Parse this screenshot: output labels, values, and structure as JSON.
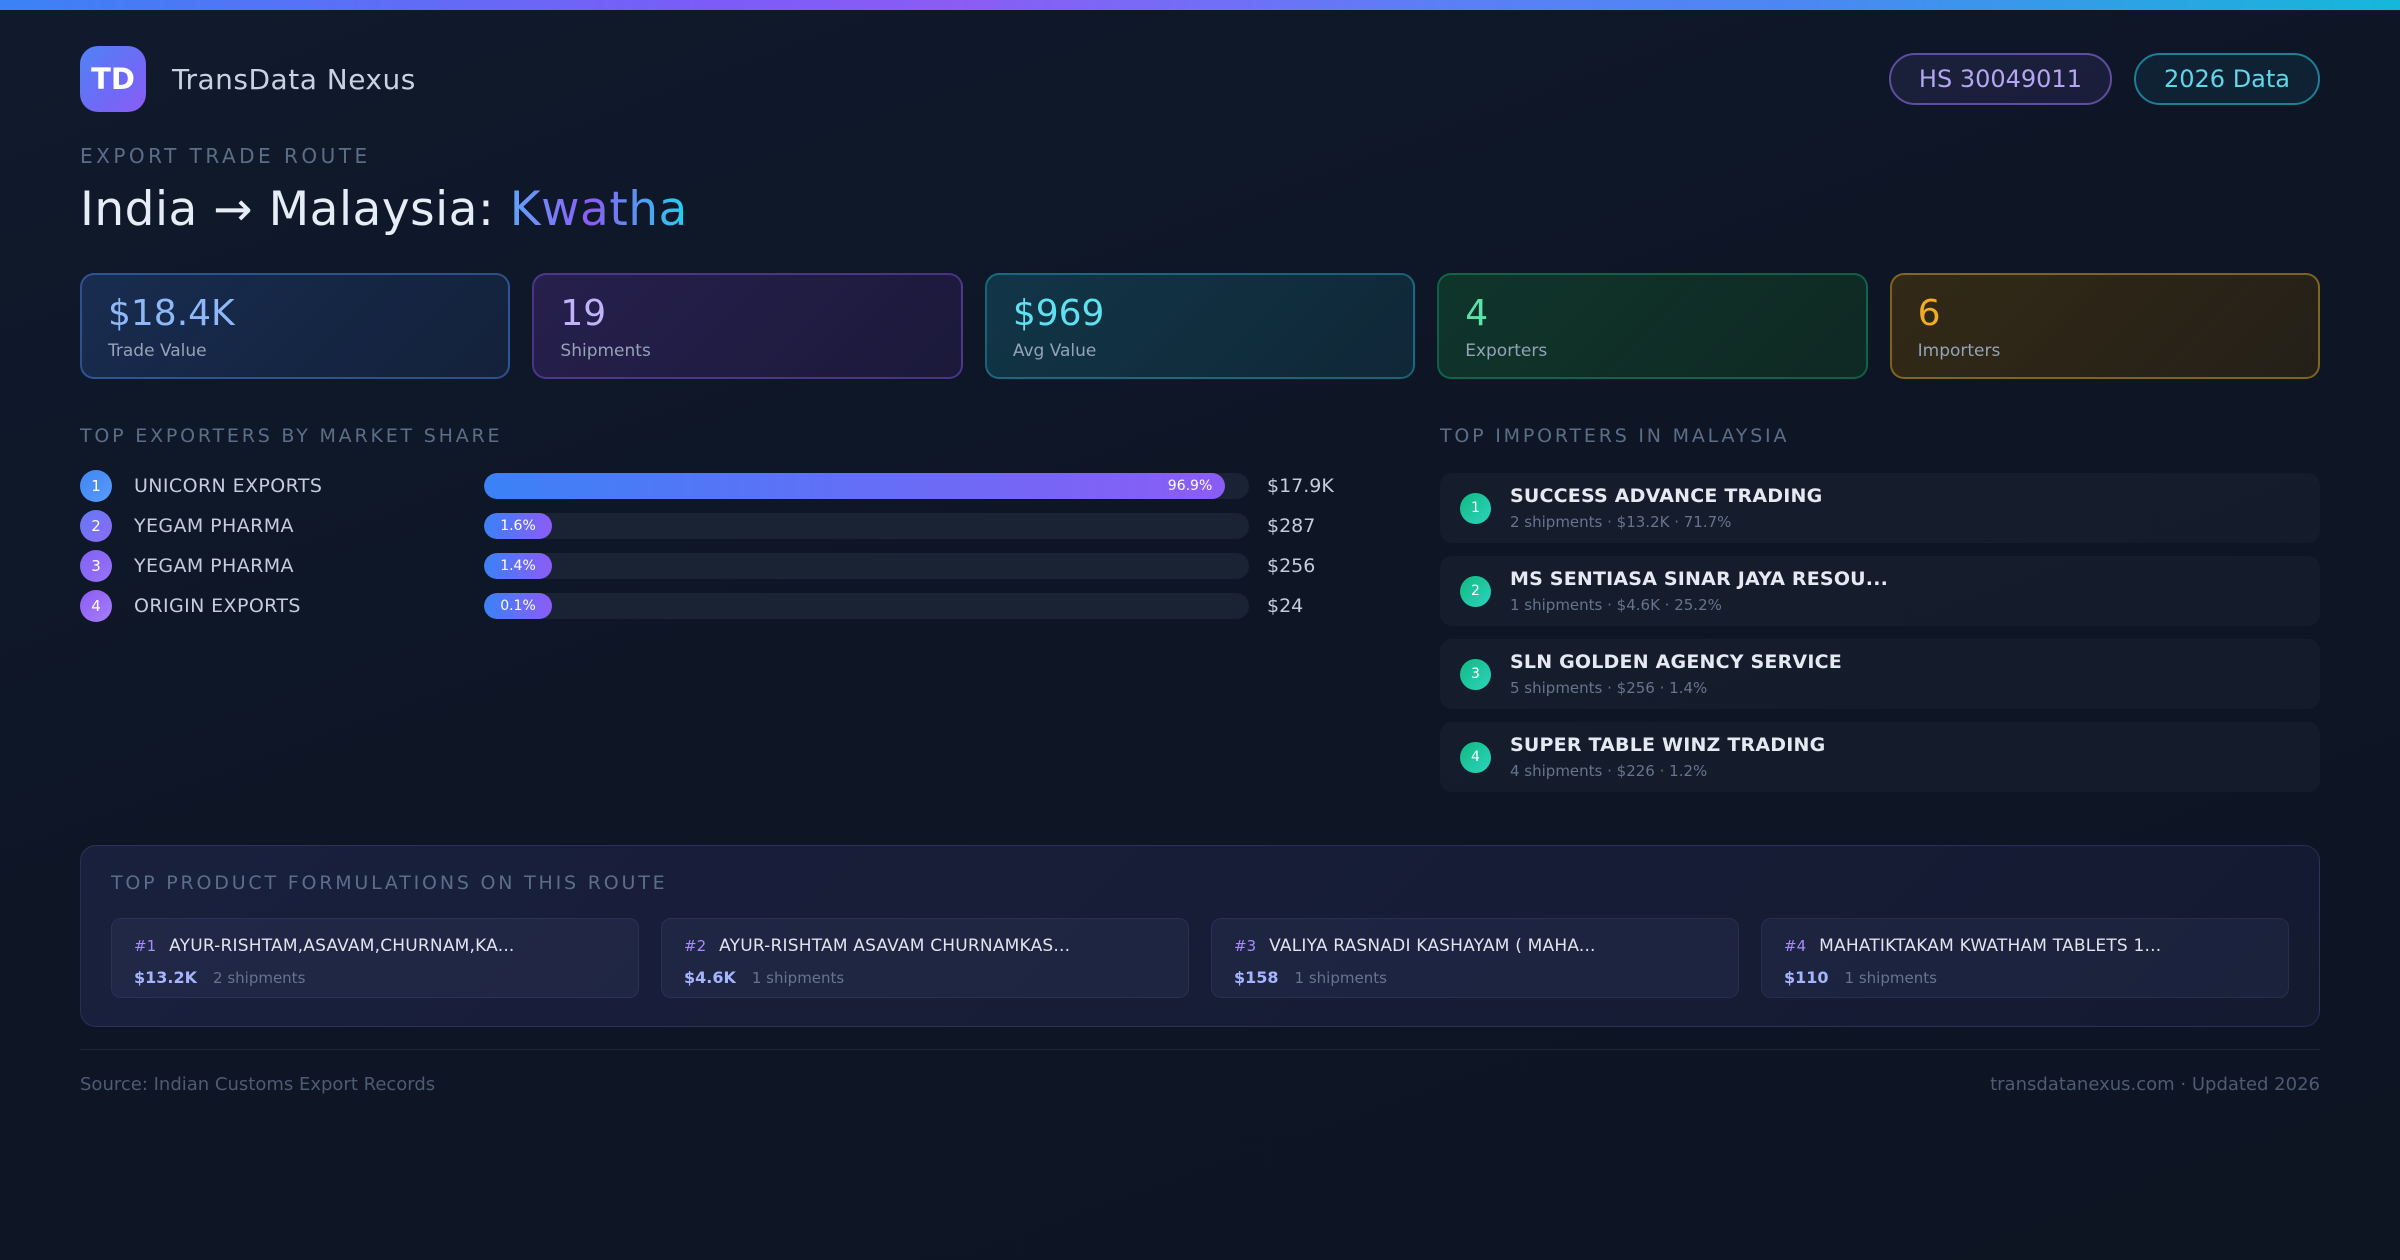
{
  "brand": {
    "logo_text": "TD",
    "name": "TransData Nexus"
  },
  "header_badges": {
    "hs_code": "HS 30049011",
    "year": "2026 Data"
  },
  "hero": {
    "eyebrow": "EXPORT TRADE ROUTE",
    "title_prefix": "India → Malaysia: ",
    "title_highlight": "Kwatha"
  },
  "stats": [
    {
      "value": "$18.4K",
      "label": "Trade Value",
      "accent": "#8fb8f8"
    },
    {
      "value": "19",
      "label": "Shipments",
      "accent": "#c2b2f8"
    },
    {
      "value": "$969",
      "label": "Avg Value",
      "accent": "#5fe1f2"
    },
    {
      "value": "4",
      "label": "Exporters",
      "accent": "#5fe0a8"
    },
    {
      "value": "6",
      "label": "Importers",
      "accent": "#f0ac24"
    }
  ],
  "exporters": {
    "heading": "TOP EXPORTERS BY MARKET SHARE",
    "rows": [
      {
        "rank": "1",
        "name": "UNICORN EXPORTS",
        "percent": "96.9%",
        "percent_value": 96.9,
        "value": "$17.9K"
      },
      {
        "rank": "2",
        "name": "YEGAM PHARMA",
        "percent": "1.6%",
        "percent_value": 1.6,
        "value": "$287"
      },
      {
        "rank": "3",
        "name": "YEGAM PHARMA",
        "percent": "1.4%",
        "percent_value": 1.4,
        "value": "$256"
      },
      {
        "rank": "4",
        "name": "ORIGIN EXPORTS",
        "percent": "0.1%",
        "percent_value": 0.1,
        "value": "$24"
      }
    ]
  },
  "importers": {
    "heading": "TOP IMPORTERS IN MALAYSIA",
    "rows": [
      {
        "rank": "1",
        "name": "SUCCESS ADVANCE TRADING",
        "meta": "2 shipments · $13.2K · 71.7%"
      },
      {
        "rank": "2",
        "name": "MS SENTIASA SINAR JAYA RESOU...",
        "meta": "1 shipments · $4.6K · 25.2%"
      },
      {
        "rank": "3",
        "name": "SLN GOLDEN AGENCY SERVICE",
        "meta": "5 shipments · $256 · 1.4%"
      },
      {
        "rank": "4",
        "name": "SUPER TABLE WINZ TRADING",
        "meta": "4 shipments · $226 · 1.2%"
      }
    ]
  },
  "products": {
    "heading": "TOP PRODUCT FORMULATIONS ON THIS ROUTE",
    "cards": [
      {
        "rank": "#1",
        "name": "AYUR-RISHTAM,ASAVAM,CHURNAM,KA...",
        "value": "$13.2K",
        "shipments": "2 shipments"
      },
      {
        "rank": "#2",
        "name": "AYUR-RISHTAM ASAVAM CHURNAMKAS...",
        "value": "$4.6K",
        "shipments": "1 shipments"
      },
      {
        "rank": "#3",
        "name": "VALIYA RASNADI KASHAYAM ( MAHA...",
        "value": "$158",
        "shipments": "1 shipments"
      },
      {
        "rank": "#4",
        "name": "MAHATIKTAKAM KWATHAM TABLETS 1...",
        "value": "$110",
        "shipments": "1 shipments"
      }
    ]
  },
  "footer": {
    "source": "Source: Indian Customs Export Records",
    "site": "transdatanexus.com · Updated 2026"
  },
  "colors": {
    "topbar_gradient": [
      "#3b82f6",
      "#8b5cf6",
      "#14b8d9"
    ],
    "bar_gradient": [
      "#3b82f6",
      "#8b5cf6"
    ],
    "importer_badge": "#10b981",
    "background": "#0e1626"
  }
}
